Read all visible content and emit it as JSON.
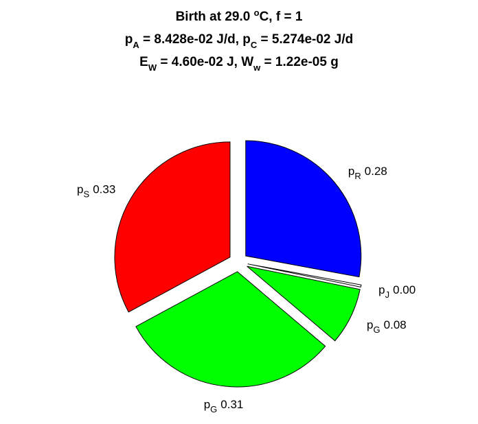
{
  "chart_data": {
    "type": "pie",
    "title": [
      [
        {
          "text": "Birth at 29.0 "
        },
        {
          "text": "o",
          "shift": "sup"
        },
        {
          "text": "C, f = 1"
        }
      ],
      [
        {
          "text": "p"
        },
        {
          "text": "A",
          "shift": "sub"
        },
        {
          "text": " = 8.428e-02 J/d, p"
        },
        {
          "text": "C",
          "shift": "sub"
        },
        {
          "text": " = 5.274e-02 J/d"
        }
      ],
      [
        {
          "text": "E"
        },
        {
          "text": "W",
          "shift": "sub"
        },
        {
          "text": " = 4.60e-02 J, W"
        },
        {
          "text": "w",
          "shift": "sub"
        },
        {
          "text": " = 1.22e-05 g"
        }
      ]
    ],
    "slices": [
      {
        "name": "p",
        "sub": "R",
        "value": 0.28,
        "value_label": "0.28",
        "color": "#0000ff"
      },
      {
        "name": "p",
        "sub": "J",
        "value": 0.003,
        "value_label": "0.00",
        "color": "#ffffff"
      },
      {
        "name": "p",
        "sub": "G",
        "value": 0.08,
        "value_label": "0.08",
        "color": "#00ff00"
      },
      {
        "name": "p",
        "sub": "G",
        "value": 0.31,
        "value_label": "0.31",
        "color": "#00ff00"
      },
      {
        "name": "p",
        "sub": "S",
        "value": 0.33,
        "value_label": "0.33",
        "color": "#ff0000"
      }
    ],
    "start_angle": 90,
    "direction": "clockwise",
    "exploded": true
  }
}
